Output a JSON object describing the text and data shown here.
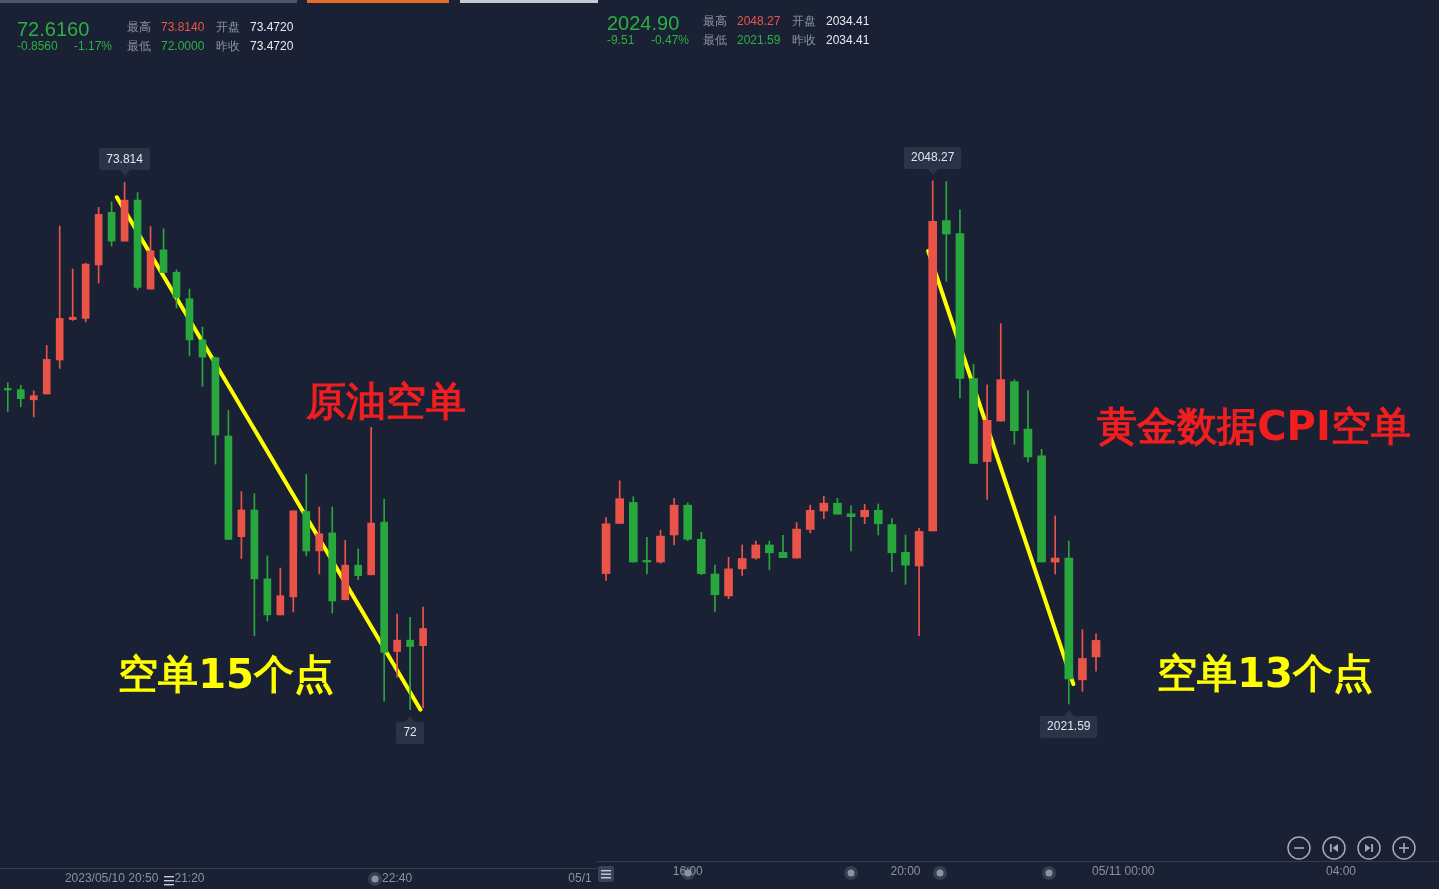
{
  "chart_data": [
    {
      "type": "candlestick",
      "title": "原油空单",
      "x": [
        "2023-05-10T20:10",
        "2023-05-10T20:15",
        "2023-05-10T20:20",
        "2023-05-10T20:25",
        "2023-05-10T20:30",
        "2023-05-10T20:35",
        "2023-05-10T20:40",
        "2023-05-10T20:45",
        "2023-05-10T20:50",
        "2023-05-10T20:55",
        "2023-05-10T21:00",
        "2023-05-10T21:05",
        "2023-05-10T21:10",
        "2023-05-10T21:15",
        "2023-05-10T21:20",
        "2023-05-10T21:25",
        "2023-05-10T21:30",
        "2023-05-10T21:35",
        "2023-05-10T21:40",
        "2023-05-10T21:45",
        "2023-05-10T21:50",
        "2023-05-10T21:55",
        "2023-05-10T22:00",
        "2023-05-10T22:05",
        "2023-05-10T22:10",
        "2023-05-10T22:15",
        "2023-05-10T22:20",
        "2023-05-10T22:25",
        "2023-05-10T22:30",
        "2023-05-10T22:35",
        "2023-05-10T22:40",
        "2023-05-10T22:45",
        "2023-05-10T22:50"
      ],
      "ohlc": [
        [
          73.105,
          73.125,
          73.026,
          73.1
        ],
        [
          73.101,
          73.116,
          73.042,
          73.07
        ],
        [
          73.066,
          73.097,
          73.007,
          73.08
        ],
        [
          73.086,
          73.253,
          73.086,
          73.205
        ],
        [
          73.203,
          73.664,
          73.174,
          73.346
        ],
        [
          73.342,
          73.516,
          73.339,
          73.35
        ],
        [
          73.346,
          73.536,
          73.334,
          73.533
        ],
        [
          73.53,
          73.728,
          73.468,
          73.704
        ],
        [
          73.711,
          73.747,
          73.595,
          73.612
        ],
        [
          73.612,
          73.814,
          73.612,
          73.753
        ],
        [
          73.753,
          73.779,
          73.445,
          73.453
        ],
        [
          73.447,
          73.662,
          73.447,
          73.579
        ],
        [
          73.582,
          73.655,
          73.504,
          73.504
        ],
        [
          73.505,
          73.513,
          73.382,
          73.418
        ],
        [
          73.414,
          73.447,
          73.217,
          73.272
        ],
        [
          73.272,
          73.316,
          73.112,
          73.213
        ],
        [
          73.211,
          73.213,
          72.845,
          72.945
        ],
        [
          72.941,
          73.029,
          72.586,
          72.586
        ],
        [
          72.595,
          72.75,
          72.52,
          72.687
        ],
        [
          72.687,
          72.743,
          72.254,
          72.45
        ],
        [
          72.45,
          72.529,
          72.305,
          72.326
        ],
        [
          72.326,
          72.487,
          72.326,
          72.392
        ],
        [
          72.388,
          72.684,
          72.336,
          72.684
        ],
        [
          72.682,
          72.809,
          72.529,
          72.546
        ],
        [
          72.546,
          72.697,
          72.467,
          72.605
        ],
        [
          72.608,
          72.697,
          72.332,
          72.374
        ],
        [
          72.378,
          72.582,
          72.378,
          72.497
        ],
        [
          72.497,
          72.553,
          72.447,
          72.461
        ],
        [
          72.464,
          72.971,
          72.464,
          72.642
        ],
        [
          72.645,
          72.724,
          72.029,
          72.197
        ],
        [
          72.2,
          72.329,
          72.112,
          72.239
        ],
        [
          72.239,
          72.318,
          72,
          72.217
        ],
        [
          72.22,
          72.353,
          72.007,
          72.279
        ]
      ],
      "colors": [
        "#28a73c",
        "#28a73c",
        "#ea5448",
        "#ea5448",
        "#ea5448",
        "#ea5448",
        "#ea5448",
        "#ea5448",
        "#28a73c",
        "#ea5448",
        "#28a73c",
        "#ea5448",
        "#28a73c",
        "#28a73c",
        "#28a73c",
        "#28a73c",
        "#28a73c",
        "#28a73c",
        "#ea5448",
        "#28a73c",
        "#28a73c",
        "#ea5448",
        "#ea5448",
        "#28a73c",
        "#ea5448",
        "#28a73c",
        "#ea5448",
        "#28a73c",
        "#ea5448",
        "#28a73c",
        "#ea5448",
        "#28a73c",
        "#ea5448"
      ],
      "series": [
        {
          "type": "line",
          "color": "#ffff00",
          "x": [
            "2023-05-10T20:52",
            "2023-05-10T22:49"
          ],
          "values": [
            73.763,
            72.0
          ]
        }
      ],
      "xlim": [
        "2023-05-10T20:07",
        "2023-05-10T23:57"
      ],
      "xticks": [
        {
          "value": "2023-05-10T20:50",
          "label": "2023/05/10 20:50"
        },
        {
          "value": "2023-05-10T21:20",
          "label": "21:20"
        },
        {
          "value": "2023-05-10T22:40",
          "label": "22:40"
        }
      ],
      "tick_labels": "x",
      "annotations": [
        "72.6160",
        "-0.8560",
        "-1.17%",
        "最高",
        "73.8140",
        "开盘",
        "73.4720",
        "最低",
        "72.0000",
        "昨收",
        "73.4720",
        "空单15个点",
        "05/1",
        {
          "text": "73.814",
          "x": "2023-05-10T20:55",
          "y": 73.814
        },
        {
          "text": "72",
          "x": "2023-05-10T22:45",
          "y": 72
        }
      ]
    },
    {
      "type": "candlestick",
      "title": "黄金数据CPI空单",
      "x": [
        "2023-05-10T14:30",
        "2023-05-10T14:45",
        "2023-05-10T15:00",
        "2023-05-10T15:15",
        "2023-05-10T15:30",
        "2023-05-10T15:45",
        "2023-05-10T16:00",
        "2023-05-10T16:15",
        "2023-05-10T16:30",
        "2023-05-10T16:45",
        "2023-05-10T17:00",
        "2023-05-10T17:15",
        "2023-05-10T17:30",
        "2023-05-10T17:45",
        "2023-05-10T18:00",
        "2023-05-10T18:15",
        "2023-05-10T18:30",
        "2023-05-10T18:45",
        "2023-05-10T19:00",
        "2023-05-10T19:15",
        "2023-05-10T19:30",
        "2023-05-10T19:45",
        "2023-05-10T20:00",
        "2023-05-10T20:15",
        "2023-05-10T20:30",
        "2023-05-10T20:45",
        "2023-05-10T21:00",
        "2023-05-10T21:15",
        "2023-05-10T21:30",
        "2023-05-10T21:45",
        "2023-05-10T22:00",
        "2023-05-10T22:15",
        "2023-05-10T22:30",
        "2023-05-10T22:45",
        "2023-05-10T23:00",
        "2023-05-10T23:15",
        "2023-05-10T23:30"
      ],
      "ohlc": [
        [
          2028.24,
          2031.1,
          2027.89,
          2030.78
        ],
        [
          2030.8,
          2032.97,
          2030.8,
          2032.06
        ],
        [
          2031.87,
          2032.16,
          2028.83,
          2028.83
        ],
        [
          2028.91,
          2030.09,
          2028.22,
          2028.83
        ],
        [
          2028.83,
          2030.45,
          2028.77,
          2030.15
        ],
        [
          2030.21,
          2032.08,
          2029.7,
          2031.73
        ],
        [
          2031.73,
          2031.85,
          2029.92,
          2029.99
        ],
        [
          2029.99,
          2030.35,
          2028.18,
          2028.24
        ],
        [
          2028.22,
          2028.67,
          2026.31,
          2027.16
        ],
        [
          2027.1,
          2029.07,
          2026.96,
          2028.48
        ],
        [
          2028.48,
          2029.7,
          2028.14,
          2029.01
        ],
        [
          2029.03,
          2029.9,
          2028.97,
          2029.7
        ],
        [
          2029.7,
          2029.9,
          2028.44,
          2029.3
        ],
        [
          2029.32,
          2030.19,
          2029.05,
          2029.05
        ],
        [
          2029.03,
          2030.84,
          2029.03,
          2030.51
        ],
        [
          2030.49,
          2031.73,
          2030.31,
          2031.47
        ],
        [
          2031.43,
          2032.18,
          2031.04,
          2031.83
        ],
        [
          2031.83,
          2032.08,
          2031.27,
          2031.27
        ],
        [
          2031.29,
          2031.69,
          2029.4,
          2031.14
        ],
        [
          2031.14,
          2031.77,
          2030.78,
          2031.47
        ],
        [
          2031.47,
          2031.79,
          2030.21,
          2030.78
        ],
        [
          2030.74,
          2031.04,
          2028.34,
          2029.3
        ],
        [
          2029.32,
          2030.21,
          2027.69,
          2028.67
        ],
        [
          2028.63,
          2030.55,
          2025.07,
          2030.39
        ],
        [
          2030.41,
          2048.27,
          2030.41,
          2046.21
        ],
        [
          2046.25,
          2048.24,
          2043.15,
          2045.56
        ],
        [
          2045.58,
          2046.8,
          2037.2,
          2038.19
        ],
        [
          2038.19,
          2038.92,
          2033.86,
          2033.86
        ],
        [
          2033.95,
          2037.87,
          2032.02,
          2036.06
        ],
        [
          2036.02,
          2040.99,
          2036.02,
          2038.13
        ],
        [
          2038.03,
          2038.13,
          2034.84,
          2035.53
        ],
        [
          2035.61,
          2037.58,
          2033.93,
          2034.19
        ],
        [
          2034.25,
          2034.58,
          2028.83,
          2028.83
        ],
        [
          2028.83,
          2031.18,
          2028.22,
          2029.03
        ],
        [
          2029.03,
          2029.9,
          2021.59,
          2022.86
        ],
        [
          2022.82,
          2025.38,
          2022.23,
          2023.91
        ],
        [
          2023.99,
          2025.17,
          2023.26,
          2024.83
        ]
      ],
      "colors": [
        "#ea5448",
        "#ea5448",
        "#28a73c",
        "#28a73c",
        "#ea5448",
        "#ea5448",
        "#28a73c",
        "#28a73c",
        "#28a73c",
        "#ea5448",
        "#ea5448",
        "#ea5448",
        "#28a73c",
        "#28a73c",
        "#ea5448",
        "#ea5448",
        "#ea5448",
        "#28a73c",
        "#28a73c",
        "#ea5448",
        "#28a73c",
        "#28a73c",
        "#28a73c",
        "#ea5448",
        "#ea5448",
        "#28a73c",
        "#28a73c",
        "#28a73c",
        "#ea5448",
        "#ea5448",
        "#28a73c",
        "#28a73c",
        "#28a73c",
        "#ea5448",
        "#28a73c",
        "#ea5448",
        "#ea5448"
      ],
      "series": [
        {
          "type": "line",
          "color": "#ffff00",
          "x": [
            "2023-05-10T20:25",
            "2023-05-10T23:05"
          ],
          "values": [
            2044.7,
            2022.6
          ]
        }
      ],
      "xlim": [
        "2023-05-10T14:20",
        "2023-05-11T05:48"
      ],
      "xticks": [
        {
          "value": "2023-05-10T16:00",
          "label": "16:00"
        },
        {
          "value": "2023-05-10T20:00",
          "label": "20:00"
        },
        {
          "value": "2023-05-11T00:00",
          "label": "05/11 00:00"
        },
        {
          "value": "2023-05-11T04:00",
          "label": "04:00"
        }
      ],
      "tick_labels": "x",
      "annotations": [
        "2024.90",
        "-9.51",
        "-0.47%",
        "最高",
        "2048.27",
        "开盘",
        "2034.41",
        "最低",
        "2021.59",
        "昨收",
        "2034.41",
        "空单13个点",
        {
          "text": "2048.27",
          "x": "2023-05-10T20:30",
          "y": 2048.27
        },
        {
          "text": "2021.59",
          "x": "2023-05-10T23:00",
          "y": 2021.59
        }
      ]
    }
  ]
}
